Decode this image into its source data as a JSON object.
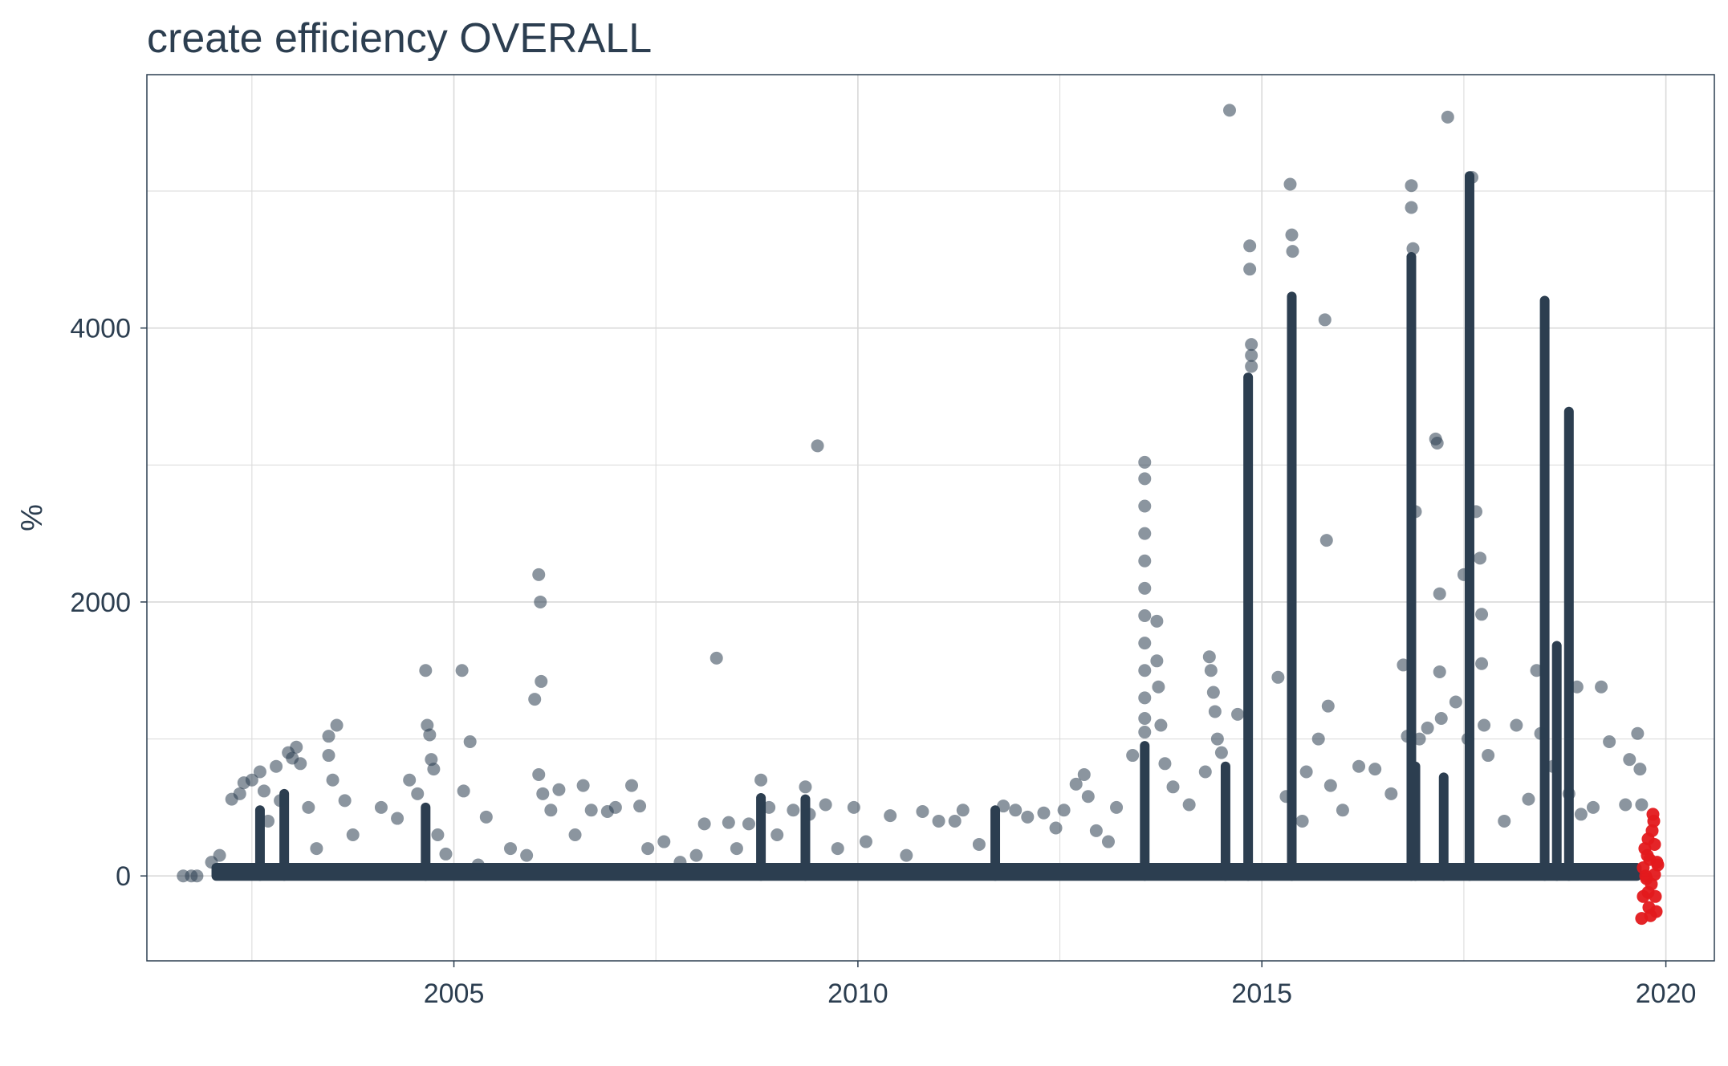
{
  "chart_data": {
    "type": "scatter",
    "title": "create efficiency OVERALL",
    "xlabel": "",
    "ylabel": "%",
    "xlim": [
      2001.2,
      2020.6
    ],
    "ylim": [
      -620,
      5850
    ],
    "x_ticks": [
      2005,
      2010,
      2015,
      2020
    ],
    "x_tick_labels": [
      "2005",
      "2010",
      "2015",
      "2020"
    ],
    "y_ticks": [
      0,
      2000,
      4000
    ],
    "y_tick_labels": [
      "0",
      "2000",
      "4000"
    ],
    "grid": true,
    "legend": "none",
    "colors": {
      "points": "#2c3e50",
      "recent_points": "#e3191c",
      "grid": "#d9d9d9",
      "frame": "#2c3e50",
      "text": "#2c3e50"
    },
    "dense_band": {
      "x_start": 2002.0,
      "x_end": 2019.7,
      "y_min": 0,
      "y_max": 60
    },
    "vertical_bands": [
      {
        "x": 2014.83,
        "y_min": 0,
        "y_max": 3640
      },
      {
        "x": 2015.37,
        "y_min": 0,
        "y_max": 4230
      },
      {
        "x": 2016.85,
        "y_min": 0,
        "y_max": 4520
      },
      {
        "x": 2017.57,
        "y_min": 0,
        "y_max": 5110
      },
      {
        "x": 2018.5,
        "y_min": 0,
        "y_max": 4200
      },
      {
        "x": 2018.8,
        "y_min": 0,
        "y_max": 3390
      },
      {
        "x": 2018.65,
        "y_min": 0,
        "y_max": 1680
      },
      {
        "x": 2013.55,
        "y_min": 0,
        "y_max": 950
      },
      {
        "x": 2014.55,
        "y_min": 0,
        "y_max": 800
      },
      {
        "x": 2002.6,
        "y_min": 0,
        "y_max": 480
      },
      {
        "x": 2002.9,
        "y_min": 0,
        "y_max": 600
      },
      {
        "x": 2004.65,
        "y_min": 0,
        "y_max": 500
      },
      {
        "x": 2008.8,
        "y_min": 0,
        "y_max": 570
      },
      {
        "x": 2009.35,
        "y_min": 0,
        "y_max": 560
      },
      {
        "x": 2011.7,
        "y_min": 0,
        "y_max": 480
      },
      {
        "x": 2016.9,
        "y_min": 0,
        "y_max": 800
      },
      {
        "x": 2017.25,
        "y_min": 0,
        "y_max": 720
      }
    ],
    "series": [
      {
        "points": [
          [
            2001.65,
            0
          ],
          [
            2001.75,
            0
          ],
          [
            2001.82,
            0
          ],
          [
            2002.0,
            100
          ],
          [
            2002.1,
            150
          ],
          [
            2002.25,
            560
          ],
          [
            2002.35,
            600
          ],
          [
            2002.4,
            680
          ],
          [
            2002.5,
            700
          ],
          [
            2002.6,
            760
          ],
          [
            2002.65,
            620
          ],
          [
            2002.7,
            400
          ],
          [
            2002.8,
            800
          ],
          [
            2002.85,
            550
          ],
          [
            2002.95,
            900
          ],
          [
            2003.0,
            860
          ],
          [
            2003.05,
            940
          ],
          [
            2003.1,
            820
          ],
          [
            2003.2,
            500
          ],
          [
            2003.3,
            200
          ],
          [
            2003.45,
            1020
          ],
          [
            2003.45,
            880
          ],
          [
            2003.5,
            700
          ],
          [
            2003.55,
            1100
          ],
          [
            2003.65,
            550
          ],
          [
            2003.75,
            300
          ],
          [
            2004.1,
            500
          ],
          [
            2004.3,
            420
          ],
          [
            2004.45,
            700
          ],
          [
            2004.55,
            600
          ],
          [
            2004.65,
            1500
          ],
          [
            2004.67,
            1100
          ],
          [
            2004.7,
            1030
          ],
          [
            2004.72,
            850
          ],
          [
            2004.75,
            780
          ],
          [
            2004.8,
            300
          ],
          [
            2004.9,
            160
          ],
          [
            2005.1,
            1500
          ],
          [
            2005.12,
            620
          ],
          [
            2005.2,
            980
          ],
          [
            2005.3,
            80
          ],
          [
            2005.4,
            430
          ],
          [
            2005.7,
            200
          ],
          [
            2005.9,
            150
          ],
          [
            2006.0,
            1290
          ],
          [
            2006.05,
            2200
          ],
          [
            2006.07,
            2000
          ],
          [
            2006.08,
            1420
          ],
          [
            2006.05,
            740
          ],
          [
            2006.1,
            600
          ],
          [
            2006.2,
            480
          ],
          [
            2006.3,
            630
          ],
          [
            2006.5,
            300
          ],
          [
            2006.6,
            660
          ],
          [
            2006.7,
            480
          ],
          [
            2006.9,
            470
          ],
          [
            2007.0,
            500
          ],
          [
            2007.2,
            660
          ],
          [
            2007.3,
            510
          ],
          [
            2007.4,
            200
          ],
          [
            2007.6,
            250
          ],
          [
            2007.8,
            100
          ],
          [
            2008.0,
            150
          ],
          [
            2008.1,
            380
          ],
          [
            2008.25,
            1590
          ],
          [
            2008.4,
            390
          ],
          [
            2008.5,
            200
          ],
          [
            2008.65,
            380
          ],
          [
            2008.8,
            700
          ],
          [
            2008.9,
            500
          ],
          [
            2009.0,
            300
          ],
          [
            2009.2,
            480
          ],
          [
            2009.35,
            650
          ],
          [
            2009.4,
            450
          ],
          [
            2009.5,
            3140
          ],
          [
            2009.6,
            520
          ],
          [
            2009.75,
            200
          ],
          [
            2009.95,
            500
          ],
          [
            2010.1,
            250
          ],
          [
            2010.4,
            440
          ],
          [
            2010.6,
            150
          ],
          [
            2010.8,
            470
          ],
          [
            2011.0,
            400
          ],
          [
            2011.2,
            400
          ],
          [
            2011.3,
            480
          ],
          [
            2011.5,
            230
          ],
          [
            2011.8,
            510
          ],
          [
            2011.95,
            480
          ],
          [
            2012.1,
            430
          ],
          [
            2012.3,
            460
          ],
          [
            2012.45,
            350
          ],
          [
            2012.55,
            480
          ],
          [
            2012.7,
            670
          ],
          [
            2012.8,
            740
          ],
          [
            2012.85,
            580
          ],
          [
            2012.95,
            330
          ],
          [
            2013.1,
            250
          ],
          [
            2013.2,
            500
          ],
          [
            2013.4,
            880
          ],
          [
            2013.55,
            3020
          ],
          [
            2013.55,
            2900
          ],
          [
            2013.55,
            2700
          ],
          [
            2013.55,
            2500
          ],
          [
            2013.55,
            2300
          ],
          [
            2013.55,
            2100
          ],
          [
            2013.55,
            1900
          ],
          [
            2013.55,
            1700
          ],
          [
            2013.55,
            1500
          ],
          [
            2013.55,
            1300
          ],
          [
            2013.55,
            1150
          ],
          [
            2013.55,
            1050
          ],
          [
            2013.7,
            1860
          ],
          [
            2013.7,
            1570
          ],
          [
            2013.72,
            1380
          ],
          [
            2013.75,
            1100
          ],
          [
            2013.8,
            820
          ],
          [
            2013.9,
            650
          ],
          [
            2014.1,
            520
          ],
          [
            2014.3,
            760
          ],
          [
            2014.35,
            1600
          ],
          [
            2014.37,
            1500
          ],
          [
            2014.4,
            1340
          ],
          [
            2014.42,
            1200
          ],
          [
            2014.45,
            1000
          ],
          [
            2014.5,
            900
          ],
          [
            2014.7,
            1180
          ],
          [
            2014.85,
            4600
          ],
          [
            2014.85,
            4430
          ],
          [
            2014.87,
            3880
          ],
          [
            2014.87,
            3800
          ],
          [
            2014.87,
            3720
          ],
          [
            2014.6,
            5590
          ],
          [
            2015.2,
            1450
          ],
          [
            2015.3,
            580
          ],
          [
            2015.35,
            5050
          ],
          [
            2015.37,
            4680
          ],
          [
            2015.38,
            4560
          ],
          [
            2015.5,
            400
          ],
          [
            2015.55,
            760
          ],
          [
            2015.7,
            1000
          ],
          [
            2015.78,
            4060
          ],
          [
            2015.8,
            2450
          ],
          [
            2015.82,
            1240
          ],
          [
            2015.85,
            660
          ],
          [
            2016.0,
            480
          ],
          [
            2016.2,
            800
          ],
          [
            2016.4,
            780
          ],
          [
            2016.6,
            600
          ],
          [
            2016.75,
            1540
          ],
          [
            2016.8,
            1020
          ],
          [
            2016.85,
            5040
          ],
          [
            2016.85,
            4880
          ],
          [
            2016.87,
            4580
          ],
          [
            2016.9,
            2660
          ],
          [
            2016.95,
            1000
          ],
          [
            2017.05,
            1080
          ],
          [
            2017.15,
            3190
          ],
          [
            2017.17,
            3160
          ],
          [
            2017.2,
            2060
          ],
          [
            2017.2,
            1490
          ],
          [
            2017.22,
            1150
          ],
          [
            2017.3,
            5540
          ],
          [
            2017.4,
            1270
          ],
          [
            2017.5,
            2200
          ],
          [
            2017.55,
            1000
          ],
          [
            2017.6,
            5100
          ],
          [
            2017.65,
            2660
          ],
          [
            2017.7,
            2320
          ],
          [
            2017.72,
            1910
          ],
          [
            2017.72,
            1550
          ],
          [
            2017.75,
            1100
          ],
          [
            2017.8,
            880
          ],
          [
            2018.0,
            400
          ],
          [
            2018.15,
            1100
          ],
          [
            2018.3,
            560
          ],
          [
            2018.4,
            1500
          ],
          [
            2018.45,
            1040
          ],
          [
            2018.6,
            800
          ],
          [
            2018.8,
            600
          ],
          [
            2018.9,
            1380
          ],
          [
            2018.95,
            450
          ],
          [
            2019.1,
            500
          ],
          [
            2019.2,
            1380
          ],
          [
            2019.3,
            980
          ],
          [
            2019.5,
            520
          ],
          [
            2019.55,
            850
          ],
          [
            2019.65,
            1040
          ],
          [
            2019.68,
            780
          ],
          [
            2019.7,
            520
          ]
        ]
      },
      {
        "points": [
          [
            2019.7,
            -310
          ],
          [
            2019.72,
            -150
          ],
          [
            2019.75,
            0
          ],
          [
            2019.77,
            150
          ],
          [
            2019.78,
            270
          ],
          [
            2019.8,
            120
          ],
          [
            2019.82,
            -60
          ],
          [
            2019.84,
            450
          ],
          [
            2019.85,
            400
          ],
          [
            2019.86,
            230
          ],
          [
            2019.87,
            -150
          ],
          [
            2019.88,
            -260
          ],
          [
            2019.9,
            80
          ],
          [
            2019.72,
            60
          ],
          [
            2019.79,
            -230
          ],
          [
            2019.83,
            330
          ],
          [
            2019.76,
            -20
          ],
          [
            2019.81,
            -290
          ],
          [
            2019.89,
            100
          ],
          [
            2019.74,
            200
          ],
          [
            2019.86,
            10
          ],
          [
            2019.78,
            -120
          ]
        ]
      }
    ]
  }
}
